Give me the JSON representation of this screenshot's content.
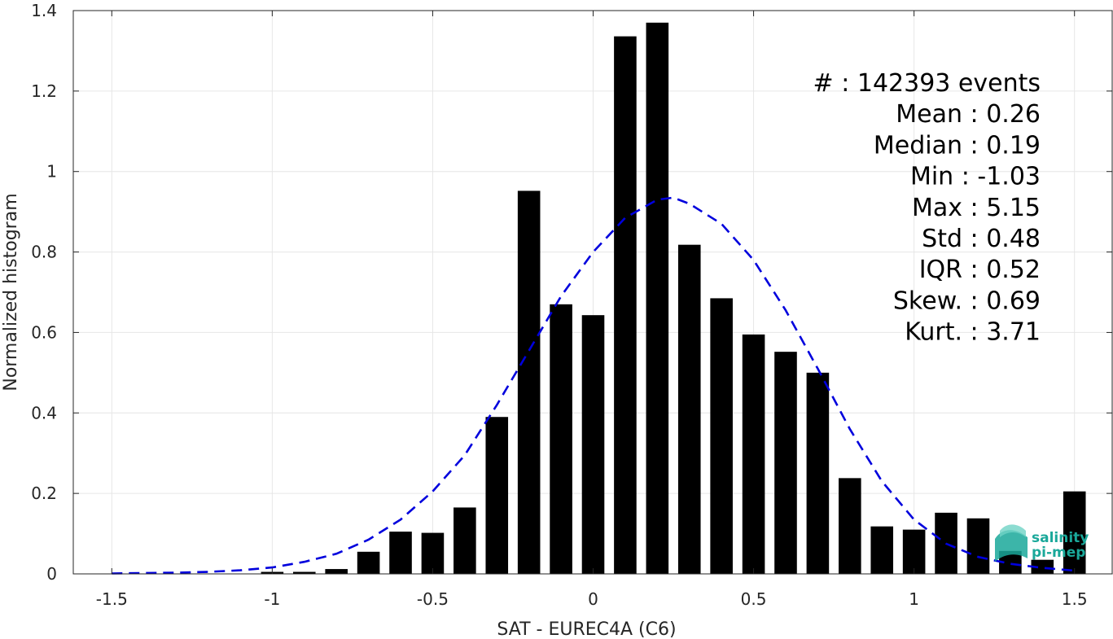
{
  "chart_data": {
    "type": "bar",
    "title": "",
    "xlabel": "SAT - EUREC4A (C6)",
    "ylabel": "Normalized histogram",
    "xlim": [
      -1.62,
      1.62
    ],
    "ylim": [
      0,
      1.4
    ],
    "x_ticks": [
      -1.5,
      -1,
      -0.5,
      0,
      0.5,
      1,
      1.5
    ],
    "x_tick_labels": [
      "-1.5",
      "-1",
      "-0.5",
      "0",
      "0.5",
      "1",
      "1.5"
    ],
    "y_ticks": [
      0,
      0.2,
      0.4,
      0.6,
      0.8,
      1,
      1.2,
      1.4
    ],
    "y_tick_labels": [
      "0",
      "0.2",
      "0.4",
      "0.6",
      "0.8",
      "1",
      "1.2",
      "1.4"
    ],
    "grid": true,
    "bin_width": 0.1,
    "bins": {
      "centers": [
        -1.5,
        -1.4,
        -1.3,
        -1.2,
        -1.1,
        -1.0,
        -0.9,
        -0.8,
        -0.7,
        -0.6,
        -0.5,
        -0.4,
        -0.3,
        -0.2,
        -0.1,
        0.0,
        0.1,
        0.2,
        0.3,
        0.4,
        0.5,
        0.6,
        0.7,
        0.8,
        0.9,
        1.0,
        1.1,
        1.2,
        1.3,
        1.4,
        1.5
      ],
      "values": [
        0,
        0,
        0,
        0,
        0,
        0.005,
        0.005,
        0.012,
        0.055,
        0.105,
        0.102,
        0.165,
        0.39,
        0.952,
        0.67,
        0.643,
        1.336,
        1.37,
        0.818,
        0.685,
        0.595,
        0.552,
        0.5,
        0.238,
        0.118,
        0.11,
        0.152,
        0.138,
        0.057,
        0.035,
        0.205
      ],
      "color": "#000000"
    },
    "fit_curve": {
      "style": "dashed",
      "color": "#0000dd",
      "x": [
        -1.5,
        -1.4,
        -1.3,
        -1.2,
        -1.1,
        -1.0,
        -0.9,
        -0.8,
        -0.7,
        -0.6,
        -0.5,
        -0.4,
        -0.3,
        -0.2,
        -0.1,
        0.0,
        0.1,
        0.2,
        0.25,
        0.3,
        0.4,
        0.5,
        0.6,
        0.7,
        0.8,
        0.9,
        1.0,
        1.1,
        1.2,
        1.3,
        1.4,
        1.5
      ],
      "y": [
        0.001,
        0.002,
        0.003,
        0.005,
        0.009,
        0.016,
        0.03,
        0.05,
        0.085,
        0.135,
        0.205,
        0.295,
        0.42,
        0.555,
        0.69,
        0.8,
        0.885,
        0.93,
        0.935,
        0.92,
        0.87,
        0.78,
        0.655,
        0.51,
        0.36,
        0.23,
        0.135,
        0.075,
        0.042,
        0.025,
        0.015,
        0.008
      ]
    },
    "annotations": [
      "#  : 142393 events",
      "Mean : 0.26",
      "Median : 0.19",
      "Min : -1.03",
      "Max : 5.15",
      "Std : 0.48",
      "IQR : 0.52",
      "Skew. : 0.69",
      "Kurt. : 3.71"
    ]
  },
  "logo": {
    "line1": "salinity",
    "line2": "pi-mep",
    "color": "#1aa89a"
  }
}
